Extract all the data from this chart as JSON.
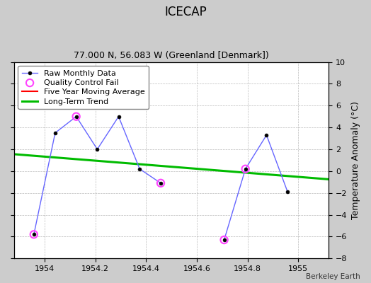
{
  "title": "ICECAP",
  "subtitle": "77.000 N, 56.083 W (Greenland [Denmark])",
  "ylabel": "Temperature Anomaly (°C)",
  "credit": "Berkeley Earth",
  "xlim": [
    1953.88,
    1955.12
  ],
  "ylim": [
    -8,
    10
  ],
  "yticks": [
    -8,
    -6,
    -4,
    -2,
    0,
    2,
    4,
    6,
    8,
    10
  ],
  "xticks": [
    1954,
    1954.2,
    1954.4,
    1954.6,
    1954.8,
    1955
  ],
  "raw_segments_x": [
    [
      1953.958,
      1954.042,
      1954.125,
      1954.208,
      1954.292,
      1954.375,
      1954.458
    ],
    [
      1954.708,
      1954.792,
      1954.875,
      1954.958
    ]
  ],
  "raw_segments_y": [
    [
      -5.8,
      3.5,
      5.0,
      2.0,
      5.0,
      0.2,
      -1.1
    ],
    [
      -6.3,
      0.2,
      3.3,
      -1.9
    ]
  ],
  "qc_fail_x": [
    1953.958,
    1954.125,
    1954.458,
    1954.708,
    1954.792
  ],
  "qc_fail_y": [
    -5.8,
    5.0,
    -1.1,
    -6.3,
    0.2
  ],
  "trend_x": [
    1953.88,
    1955.12
  ],
  "trend_y": [
    1.55,
    -0.75
  ],
  "raw_line_color": "#6666ff",
  "raw_marker_color": "#000000",
  "qc_color": "#ff44ff",
  "trend_color": "#00bb00",
  "ma_color": "#ff0000",
  "background_color": "#cccccc",
  "plot_background": "#ffffff",
  "grid_color": "#aaaaaa",
  "title_fontsize": 12,
  "subtitle_fontsize": 9,
  "ylabel_fontsize": 9,
  "tick_fontsize": 8,
  "legend_fontsize": 8
}
